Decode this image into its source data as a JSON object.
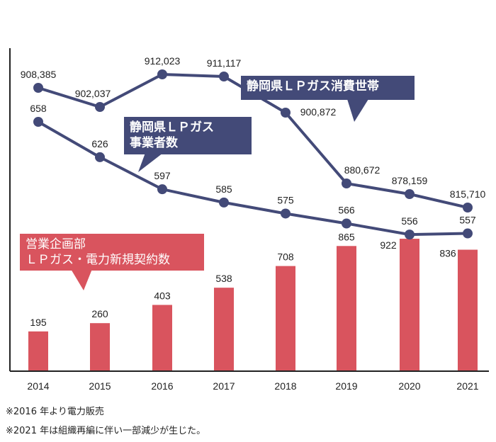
{
  "chart_data": {
    "type": "bar+line",
    "categories": [
      "2014",
      "2015",
      "2016",
      "2017",
      "2018",
      "2019",
      "2020",
      "2021"
    ],
    "series": [
      {
        "name": "静岡県ＬＰガス消費世帯",
        "type": "line",
        "values": [
          908385,
          902037,
          912023,
          911117,
          900872,
          880672,
          878159,
          815710
        ],
        "labels": [
          "908,385",
          "902,037",
          "912,023",
          "911,117",
          "900,872",
          "880,672",
          "878,159",
          "815,710"
        ],
        "color": "#434a78"
      },
      {
        "name": "静岡県ＬＰガス事業者数",
        "type": "line",
        "values": [
          658,
          626,
          597,
          585,
          575,
          566,
          556,
          557
        ],
        "color": "#434a78"
      },
      {
        "name": "営業企画部 ＬＰガス・電力新規契約数",
        "type": "bar",
        "values": [
          195,
          260,
          403,
          538,
          708,
          865,
          922,
          836
        ],
        "color": "#d9545e"
      }
    ],
    "callouts": {
      "households": "静岡県ＬＰガス消費世帯",
      "operators_line1": "静岡県ＬＰガス",
      "operators_line2": "事業者数",
      "contracts_line1": "営業企画部",
      "contracts_line2": "ＬＰガス・電力新規契約数"
    },
    "grid": false
  },
  "notes": [
    "※2016 年より電力販売",
    "※2021 年は組織再編に伴い一部減少が生じた。"
  ]
}
